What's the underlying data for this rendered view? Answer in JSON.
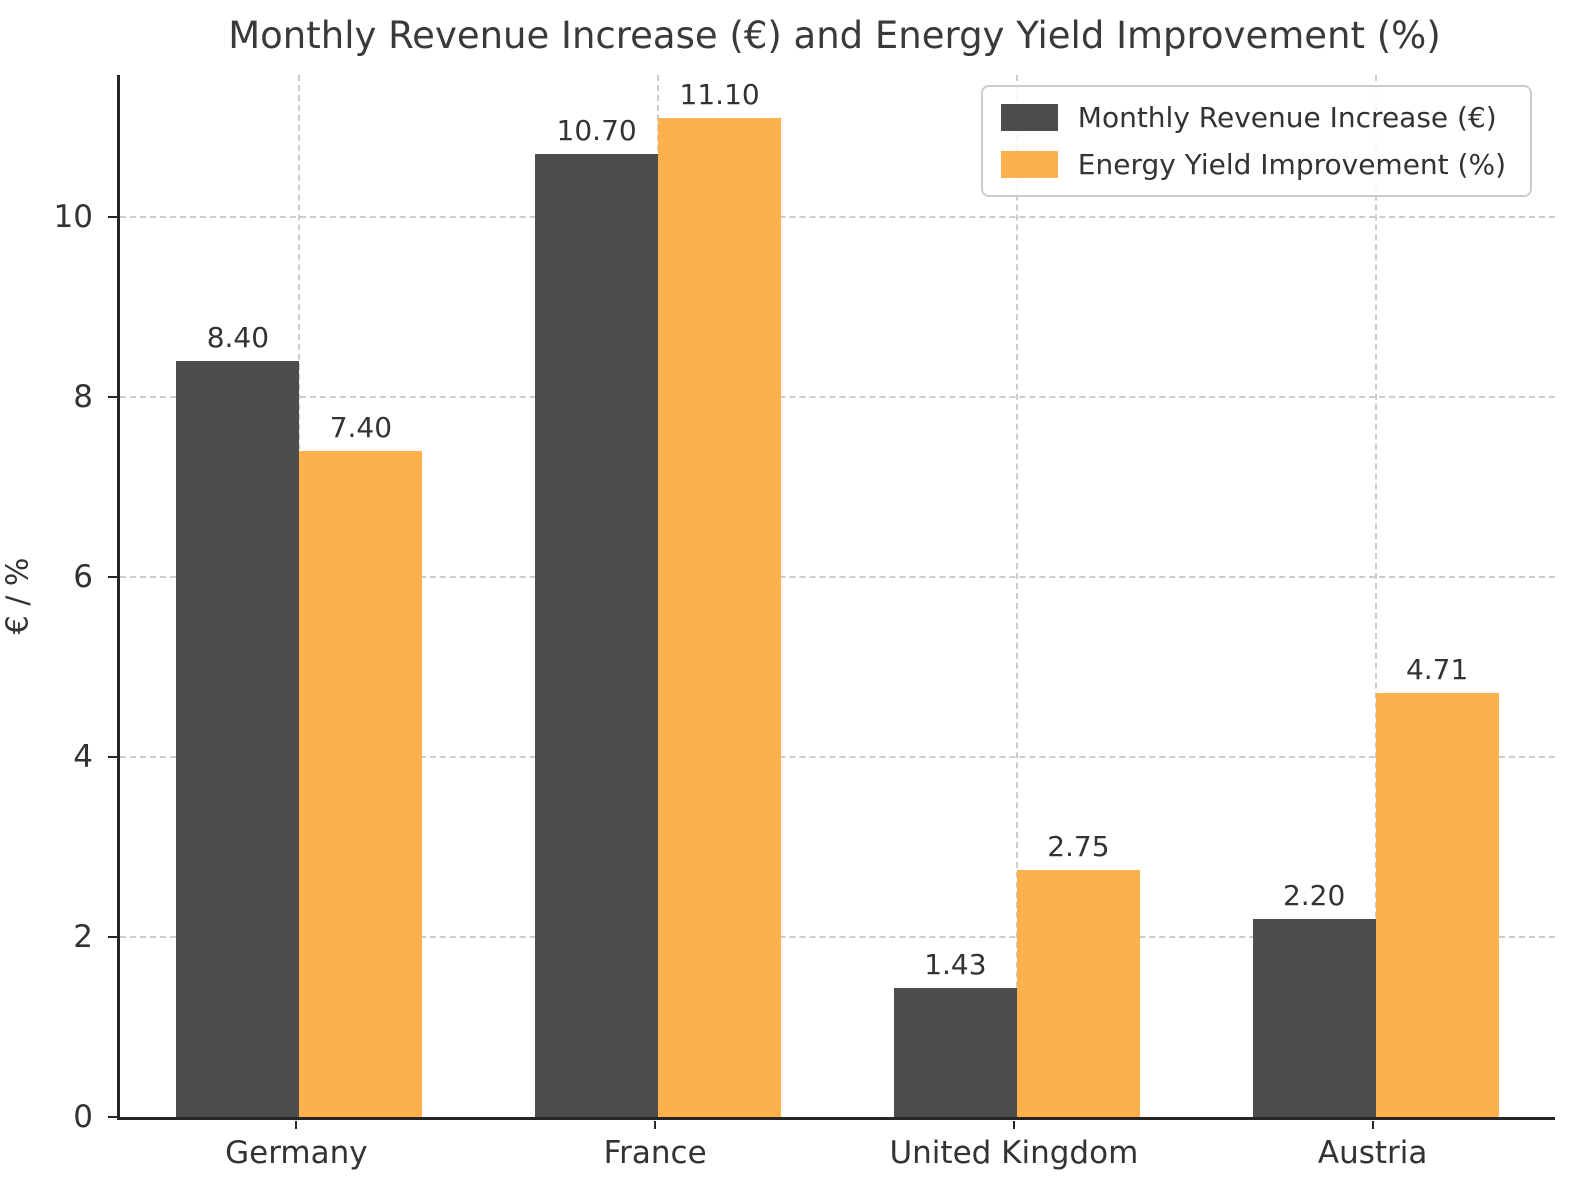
{
  "figure": {
    "title": "Monthly Revenue Increase (€) and Energy Yield Improvement (%)"
  },
  "chart_data": {
    "type": "bar",
    "title": "Monthly Revenue Increase (€) and Energy Yield Improvement (%)",
    "categories": [
      "Germany",
      "France",
      "United Kingdom",
      "Austria"
    ],
    "series": [
      {
        "name": "Monthly Revenue Increase (€)",
        "color": "#4d4d4d",
        "values": [
          8.4,
          10.7,
          1.43,
          2.2
        ],
        "value_labels": [
          "8.40",
          "10.70",
          "1.43",
          "2.20"
        ]
      },
      {
        "name": "Energy Yield Improvement (%)",
        "color": "#fdb14c",
        "values": [
          7.4,
          11.1,
          2.75,
          4.71
        ],
        "value_labels": [
          "7.40",
          "11.10",
          "2.75",
          "4.71"
        ]
      }
    ],
    "xlabel": "",
    "ylabel": "€ / %",
    "yticks": [
      0,
      2,
      4,
      6,
      8,
      10
    ],
    "ytick_labels": [
      "0",
      "2",
      "4",
      "6",
      "8",
      "10"
    ],
    "ylim": [
      0,
      11.58
    ],
    "grid": true,
    "grid_style": "dashed",
    "legend_position": "upper right",
    "bar_value_labels": true
  },
  "colors": {
    "bar_dark": "#4d4d4d",
    "bar_orange": "#fdb14c",
    "grid": "#cccccc",
    "spine": "#262626",
    "text": "#333333",
    "background": "#ffffff"
  }
}
